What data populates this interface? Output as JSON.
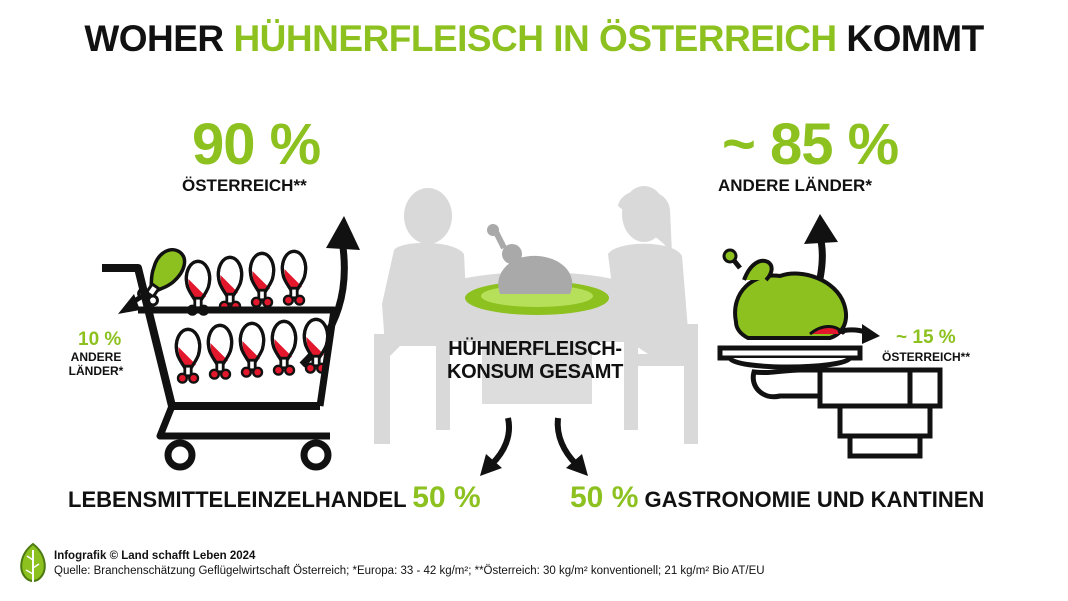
{
  "title": {
    "part1": "WOHER ",
    "part2": "HÜHNERFLEISCH IN ÖSTERREICH",
    "part3": " KOMMT",
    "accent_color": "#8cc11f"
  },
  "retail": {
    "main_pct": "90 %",
    "main_label": "ÖSTERREICH**",
    "minor_pct": "10 %",
    "minor_label_line1": "ANDERE",
    "minor_label_line2": "LÄNDER*",
    "icon": "shopping-cart-icon"
  },
  "gastro": {
    "main_pct": "~ 85 %",
    "main_label": "ANDERE LÄNDER*",
    "minor_pct": "~ 15 %",
    "minor_label": "ÖSTERREICH**",
    "icon": "serving-tray-icon"
  },
  "center": {
    "label_line1": "HÜHNERFLEISCH-",
    "label_line2": "KONSUM GESAMT",
    "icon": "dining-table-icon"
  },
  "split": {
    "left_label": "LEBENSMITTELEINZELHANDEL",
    "left_pct": "50 %",
    "right_pct": "50 %",
    "right_label": "GASTRONOMIE UND KANTINEN"
  },
  "footer": {
    "credit": "Infografik © Land schafft Leben 2024",
    "source": "Quelle: Branchenschätzung  Geflügelwirtschaft Österreich; *Europa: 33 - 42 kg/m²; **Österreich: 30 kg/m² konventionell; 21 kg/m² Bio AT/EU"
  }
}
